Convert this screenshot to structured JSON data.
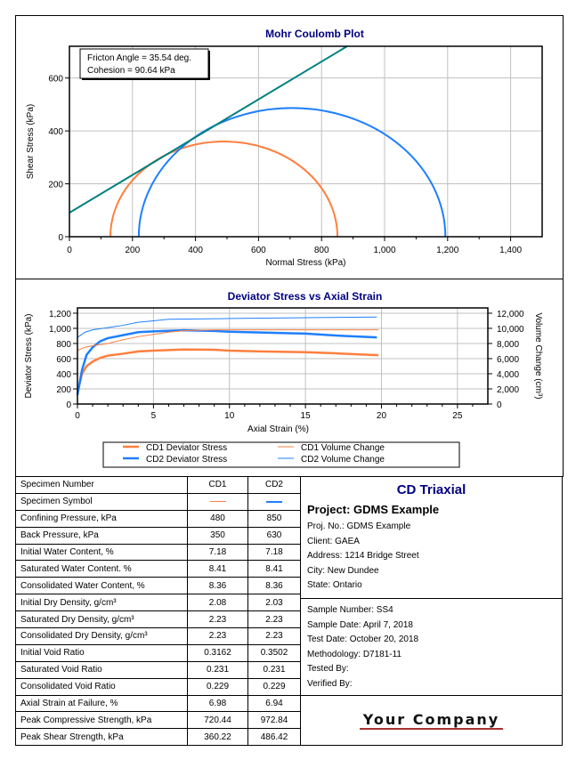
{
  "chart_data": [
    {
      "type": "scatter",
      "title": "Mohr Coulomb Plot",
      "xlabel": "Normal Stress (kPa)",
      "ylabel": "Shear Stress (kPa)",
      "xlim": [
        0,
        1500
      ],
      "ylim": [
        0,
        720
      ],
      "xticks": [
        0,
        200,
        400,
        600,
        800,
        1000,
        1200,
        1400
      ],
      "xtick_labels": [
        "0",
        "200",
        "400",
        "600",
        "800",
        "1,000",
        "1,200",
        "1,400"
      ],
      "yticks": [
        0,
        200,
        400,
        600
      ],
      "ytick_labels": [
        "0",
        "200",
        "400",
        "600"
      ],
      "grid": true,
      "annotation": [
        "Fricton Angle = 35.54 deg.",
        "Cohesion = 90.64 kPa"
      ],
      "friction_angle_deg": 35.54,
      "cohesion": 90.64,
      "envelope_color": "#008080",
      "circles": [
        {
          "specimen": "CD1",
          "sigma3": 130,
          "sigma1": 850.44,
          "color": "#ff7f3f"
        },
        {
          "specimen": "CD2",
          "sigma3": 220,
          "sigma1": 1192.84,
          "color": "#1e7fff"
        }
      ]
    },
    {
      "type": "line",
      "title": "Deviator Stress vs Axial Strain",
      "xlabel": "Axial Strain (%)",
      "ylabel": "Deviator Stress (kPa)",
      "y2label": "Volume Change (cm³)",
      "xlim": [
        0,
        27
      ],
      "ylim": [
        0,
        1270
      ],
      "y2lim": [
        0,
        12700
      ],
      "xticks": [
        0,
        5,
        10,
        15,
        20,
        25
      ],
      "yticks": [
        0,
        200,
        400,
        600,
        800,
        1000,
        1200
      ],
      "ytick_labels": [
        "0",
        "200",
        "400",
        "600",
        "800",
        "1,000",
        "1,200"
      ],
      "y2ticks": [
        0,
        2000,
        4000,
        6000,
        8000,
        10000,
        12000
      ],
      "y2tick_labels": [
        "0",
        "2,000",
        "4,000",
        "6,000",
        "8,000",
        "10,000",
        "12,000"
      ],
      "grid": true,
      "legend_placement": "bottom",
      "series": [
        {
          "name": "CD1 Deviator Stress",
          "axis": "left",
          "color": "#ff7f3f",
          "width": 2.5,
          "x": [
            0,
            0.3,
            0.6,
            1,
            1.5,
            2,
            3,
            4,
            5,
            7,
            9,
            10,
            12,
            15,
            17,
            19.8
          ],
          "y": [
            150,
            400,
            500,
            560,
            610,
            640,
            665,
            695,
            705,
            720,
            718,
            705,
            695,
            685,
            670,
            645
          ]
        },
        {
          "name": "CD2 Deviator Stress",
          "axis": "left",
          "color": "#1e7fff",
          "width": 2.5,
          "x": [
            0,
            0.3,
            0.6,
            1,
            1.5,
            2,
            3,
            4,
            5,
            7,
            9,
            10,
            12,
            15,
            17,
            19.7
          ],
          "y": [
            120,
            450,
            650,
            750,
            830,
            870,
            910,
            950,
            960,
            975,
            965,
            955,
            945,
            930,
            905,
            880
          ]
        },
        {
          "name": "CD1 Volume Change",
          "axis": "right",
          "color": "#ff7f3f",
          "width": 1,
          "x": [
            0,
            0.5,
            1,
            2,
            3,
            4,
            5,
            6,
            7,
            9,
            19.8
          ],
          "y": [
            7100,
            7500,
            7700,
            8000,
            8500,
            8900,
            9200,
            9500,
            9700,
            9800,
            9800
          ]
        },
        {
          "name": "CD2 Volume Change",
          "axis": "right",
          "color": "#1e7fff",
          "width": 1,
          "x": [
            0,
            0.5,
            1,
            2,
            3,
            4,
            5,
            6,
            10,
            15,
            19.7
          ],
          "y": [
            8800,
            9500,
            9800,
            10100,
            10400,
            10800,
            11000,
            11200,
            11300,
            11400,
            11500
          ]
        }
      ]
    }
  ],
  "table": {
    "header": [
      "Specimen Number",
      "CD1",
      "CD2"
    ],
    "symbol_label": "Specimen Symbol",
    "rows": [
      [
        "Confining Pressure, kPa",
        "480",
        "850"
      ],
      [
        "Back Pressure, kPa",
        "350",
        "630"
      ],
      [
        "Initial Water Content, %",
        "7.18",
        "7.18"
      ],
      [
        "Saturated Water Content. %",
        "8.41",
        "8.41"
      ],
      [
        "Consolidated Water Content, %",
        "8.36",
        "8.36"
      ],
      [
        "Initial Dry Density, g/cm³",
        "2.08",
        "2.03"
      ],
      [
        "Saturated Dry Density, g/cm³",
        "2.23",
        "2.23"
      ],
      [
        "Consolidated Dry Density, g/cm³",
        "2.23",
        "2.23"
      ],
      [
        "Initial Void Ratio",
        "0.3162",
        "0.3502"
      ],
      [
        "Saturated Void Ratio",
        "0.231",
        "0.231"
      ],
      [
        "Consolidated Void Ratio",
        "0.229",
        "0.229"
      ],
      [
        "Axial Strain at Failure, %",
        "6.98",
        "6.94"
      ],
      [
        "Peak Compressive Strength, kPa",
        "720.44",
        "972.84"
      ],
      [
        "Peak Shear Strength, kPa",
        "360.22",
        "486.42"
      ]
    ]
  },
  "info": {
    "title": "CD Triaxial",
    "project": "Project: GDMS Example",
    "project_lines": [
      "Proj. No.: GDMS Example",
      "Client: GAEA",
      "Address: 1214 Bridge Street",
      "City: New Dundee",
      "State: Ontario"
    ],
    "sample_lines": [
      "Sample Number: SS4",
      "Sample Date: April 7, 2018",
      "Test Date: October 20, 2018",
      "Methodology: D7181-11",
      "Tested By:",
      "Verified By:"
    ],
    "logo": "Your Company"
  }
}
